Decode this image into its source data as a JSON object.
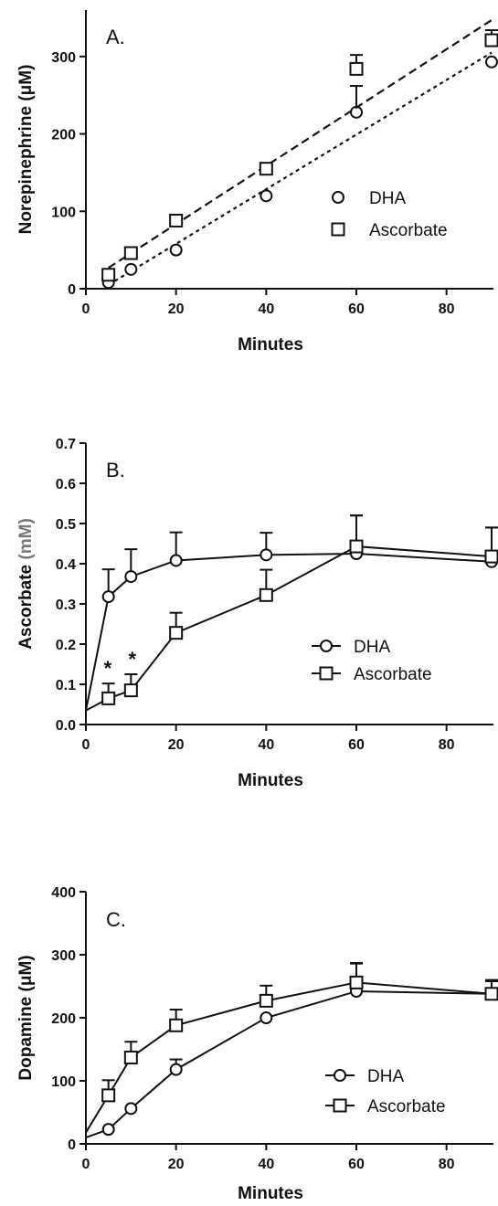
{
  "chart_data": [
    {
      "type": "scatter",
      "panel_label": "A.",
      "xlabel": "Minutes",
      "ylabel": "Norepinephrine (μM)",
      "xlim": [
        0,
        90
      ],
      "ylim": [
        0,
        360
      ],
      "xticks": [
        0,
        20,
        40,
        60,
        80
      ],
      "yticks": [
        0,
        100,
        200,
        300
      ],
      "legend_position": "right",
      "series": [
        {
          "name": "DHA",
          "marker": "circle",
          "x": [
            5,
            10,
            20,
            40,
            60,
            90
          ],
          "y": [
            8,
            25,
            50,
            120,
            228,
            293
          ],
          "error": [
            0,
            0,
            0,
            0,
            34,
            0
          ],
          "trendline": {
            "style": "dotted",
            "x": [
              5,
              90
            ],
            "y": [
              5,
              305
            ]
          }
        },
        {
          "name": "Ascorbate",
          "marker": "square",
          "x": [
            5,
            10,
            20,
            40,
            60,
            90
          ],
          "y": [
            18,
            46,
            88,
            155,
            284,
            321
          ],
          "error": [
            0,
            0,
            0,
            0,
            18,
            13
          ],
          "trendline": {
            "style": "dashed",
            "x": [
              5,
              90
            ],
            "y": [
              27,
              347
            ]
          }
        }
      ]
    },
    {
      "type": "line",
      "panel_label": "B.",
      "xlabel": "Minutes",
      "ylabel": "Ascorbate ",
      "ylabel_unit": "(mM)",
      "xlim": [
        0,
        90
      ],
      "ylim": [
        0,
        0.7
      ],
      "xticks": [
        0,
        20,
        40,
        60,
        80
      ],
      "yticks": [
        "0.0",
        "0.1",
        "0.2",
        "0.3",
        "0.4",
        "0.5",
        "0.6",
        "0.7"
      ],
      "legend_position": "right",
      "annotations": [
        "*",
        "*"
      ],
      "series": [
        {
          "name": "DHA",
          "marker": "circle",
          "x": [
            0,
            5,
            10,
            20,
            40,
            60,
            90
          ],
          "y": [
            0.035,
            0.318,
            0.368,
            0.408,
            0.422,
            0.425,
            0.405
          ],
          "error": [
            0,
            0.068,
            0.068,
            0.07,
            0.055,
            0.095,
            0.085
          ]
        },
        {
          "name": "Ascorbate",
          "marker": "square",
          "x": [
            0,
            5,
            10,
            20,
            40,
            60,
            90
          ],
          "y": [
            0.035,
            0.065,
            0.085,
            0.228,
            0.322,
            0.443,
            0.418
          ],
          "error": [
            0,
            0.037,
            0.04,
            0.05,
            0.063,
            0.077,
            0.072
          ]
        }
      ]
    },
    {
      "type": "line",
      "panel_label": "C.",
      "xlabel": "Minutes",
      "ylabel": "Dopamine (μM)",
      "xlim": [
        0,
        90
      ],
      "ylim": [
        0,
        400
      ],
      "xticks": [
        0,
        20,
        40,
        60,
        80
      ],
      "yticks": [
        0,
        100,
        200,
        300,
        400
      ],
      "legend_position": "right",
      "series": [
        {
          "name": "DHA",
          "marker": "circle",
          "x": [
            0,
            5,
            10,
            20,
            40,
            60,
            90
          ],
          "y": [
            10,
            23,
            56,
            118,
            200,
            242,
            238
          ],
          "error": [
            0,
            0,
            0,
            16,
            0,
            45,
            22
          ]
        },
        {
          "name": "Ascorbate",
          "marker": "square",
          "x": [
            0,
            5,
            10,
            20,
            40,
            60,
            90
          ],
          "y": [
            18,
            77,
            137,
            188,
            227,
            256,
            238
          ],
          "error": [
            0,
            24,
            25,
            25,
            24,
            30,
            20
          ]
        }
      ]
    }
  ]
}
